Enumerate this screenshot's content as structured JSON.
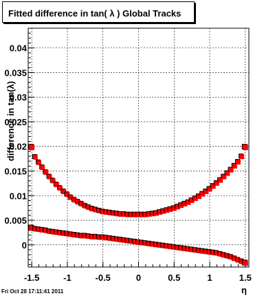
{
  "header": {
    "title": "Fitted difference in tan( λ )  Global Tracks"
  },
  "footer": {
    "timestamp": "Fri Oct 28 17:11:41 2011"
  },
  "colors": {
    "series_upper": "#ff0000",
    "series_lower": "#ff0000",
    "outline": "#000000",
    "grid": "#000000"
  },
  "chart_data": {
    "type": "scatter",
    "title": "Fitted difference in tan( λ )  Global Tracks",
    "xlabel": "η",
    "ylabel": "difference in tan(λ)",
    "xlim": [
      -1.55,
      1.55
    ],
    "ylim": [
      -0.0045,
      0.044
    ],
    "grid": true,
    "x_ticks": [
      {
        "v": -1.5,
        "label": "-1.5"
      },
      {
        "v": -1.0,
        "label": "-1"
      },
      {
        "v": -0.5,
        "label": "-0.5"
      },
      {
        "v": 0.0,
        "label": "0"
      },
      {
        "v": 0.5,
        "label": "0.5"
      },
      {
        "v": 1.0,
        "label": "1"
      },
      {
        "v": 1.5,
        "label": "1.5"
      }
    ],
    "y_ticks": [
      {
        "v": 0.0,
        "label": "0"
      },
      {
        "v": 0.005,
        "label": "0.005"
      },
      {
        "v": 0.01,
        "label": "0.01"
      },
      {
        "v": 0.015,
        "label": "0.015"
      },
      {
        "v": 0.02,
        "label": "0.02"
      },
      {
        "v": 0.025,
        "label": "0.025"
      },
      {
        "v": 0.03,
        "label": "0.03"
      },
      {
        "v": 0.035,
        "label": "0.035"
      },
      {
        "v": 0.04,
        "label": "0.04"
      }
    ],
    "series": [
      {
        "x": [
          -1.5,
          -1.45,
          -1.4,
          -1.35,
          -1.3,
          -1.25,
          -1.2,
          -1.15,
          -1.1,
          -1.05,
          -1.0,
          -0.95,
          -0.9,
          -0.85,
          -0.8,
          -0.75,
          -0.7,
          -0.65,
          -0.6,
          -0.55,
          -0.5,
          -0.45,
          -0.4,
          -0.35,
          -0.3,
          -0.25,
          -0.2,
          -0.15,
          -0.1,
          -0.05,
          0.0,
          0.05,
          0.1,
          0.15,
          0.2,
          0.25,
          0.3,
          0.35,
          0.4,
          0.45,
          0.5,
          0.55,
          0.6,
          0.65,
          0.7,
          0.75,
          0.8,
          0.85,
          0.9,
          0.95,
          1.0,
          1.05,
          1.1,
          1.15,
          1.2,
          1.25,
          1.3,
          1.35,
          1.4,
          1.45,
          1.5
        ],
        "values": [
          0.0198,
          0.0178,
          0.0167,
          0.0157,
          0.0147,
          0.0138,
          0.013,
          0.0122,
          0.0115,
          0.0108,
          0.0102,
          0.0096,
          0.0091,
          0.0087,
          0.0083,
          0.0079,
          0.0076,
          0.0073,
          0.0071,
          0.0069,
          0.0067,
          0.0066,
          0.0065,
          0.0064,
          0.0063,
          0.0062,
          0.0062,
          0.0061,
          0.0061,
          0.0061,
          0.0061,
          0.0061,
          0.0061,
          0.0062,
          0.0063,
          0.0064,
          0.0066,
          0.0068,
          0.007,
          0.0072,
          0.0074,
          0.0077,
          0.008,
          0.0083,
          0.0086,
          0.009,
          0.0094,
          0.0098,
          0.0103,
          0.0108,
          0.0113,
          0.0119,
          0.0125,
          0.0131,
          0.0138,
          0.0145,
          0.0152,
          0.016,
          0.0168,
          0.0179,
          0.0198
        ]
      },
      {
        "x": [
          -1.5,
          -1.45,
          -1.4,
          -1.35,
          -1.3,
          -1.25,
          -1.2,
          -1.15,
          -1.1,
          -1.05,
          -1.0,
          -0.95,
          -0.9,
          -0.85,
          -0.8,
          -0.75,
          -0.7,
          -0.65,
          -0.6,
          -0.55,
          -0.5,
          -0.45,
          -0.4,
          -0.35,
          -0.3,
          -0.25,
          -0.2,
          -0.15,
          -0.1,
          -0.05,
          0.0,
          0.05,
          0.1,
          0.15,
          0.2,
          0.25,
          0.3,
          0.35,
          0.4,
          0.45,
          0.5,
          0.55,
          0.6,
          0.65,
          0.7,
          0.75,
          0.8,
          0.85,
          0.9,
          0.95,
          1.0,
          1.05,
          1.1,
          1.15,
          1.2,
          1.25,
          1.3,
          1.35,
          1.4,
          1.45,
          1.5
        ],
        "values": [
          0.0034,
          0.0032,
          0.0031,
          0.003,
          0.0029,
          0.0027,
          0.0026,
          0.0025,
          0.0024,
          0.0023,
          0.0022,
          0.0021,
          0.002,
          0.0019,
          0.0018,
          0.0018,
          0.0017,
          0.0016,
          0.0016,
          0.0015,
          0.0015,
          0.0014,
          0.0013,
          0.0012,
          0.0011,
          0.001,
          0.0009,
          0.0008,
          0.0007,
          0.0006,
          0.0005,
          0.0004,
          0.0003,
          0.0002,
          0.0001,
          0.0,
          -0.0001,
          -0.0002,
          -0.0003,
          -0.0004,
          -0.0005,
          -0.0006,
          -0.0007,
          -0.0008,
          -0.0009,
          -0.001,
          -0.0011,
          -0.0012,
          -0.0013,
          -0.0014,
          -0.0015,
          -0.0016,
          -0.0017,
          -0.0019,
          -0.0021,
          -0.0023,
          -0.0025,
          -0.0028,
          -0.0031,
          -0.0034,
          -0.0037
        ]
      }
    ]
  }
}
